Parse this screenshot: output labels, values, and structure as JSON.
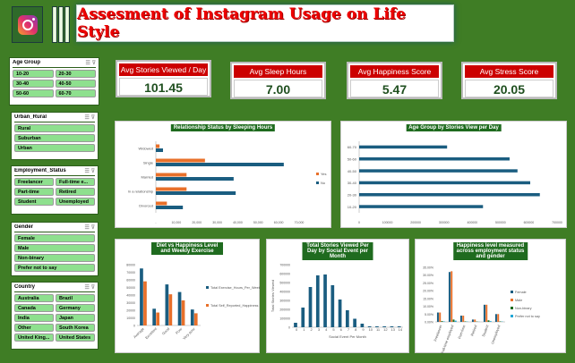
{
  "header": {
    "title": "Assesment of Instagram Usage on Life Style",
    "logo": "instagram-logo"
  },
  "slicers": [
    {
      "title": "Age Group",
      "cols": 2,
      "items": [
        "10-20",
        "20-30",
        "30-40",
        "40-50",
        "50-60",
        "60-70"
      ]
    },
    {
      "title": "Urban_Rural",
      "cols": 1,
      "items": [
        "Rural",
        "Suburban",
        "Urban"
      ]
    },
    {
      "title": "Employment_Status",
      "cols": 2,
      "items": [
        "Freelancer",
        "Full-time e...",
        "Part-time",
        "Retired",
        "Student",
        "Unemployed"
      ]
    },
    {
      "title": "Gender",
      "cols": 1,
      "items": [
        "Female",
        "Male",
        "Non-binary",
        "Prefer not to say"
      ]
    },
    {
      "title": "Country",
      "cols": 2,
      "items": [
        "Australia",
        "Brazil",
        "Canada",
        "Germany",
        "India",
        "Japan",
        "Other",
        "South Korea",
        "United King...",
        "United States"
      ]
    }
  ],
  "kpis": [
    {
      "label": "Avg Stories Viewed / Day",
      "value": "101.45"
    },
    {
      "label": "Avg Sleep Hours",
      "value": "7.00"
    },
    {
      "label": "Avg Happiness Score",
      "value": "5.47"
    },
    {
      "label": "Avg Stress Score",
      "value": "20.05"
    }
  ],
  "colors": {
    "blue": "#1a5d80",
    "orange": "#e8702a",
    "green": "#1e6b1e",
    "cyan": "#22a7d6",
    "background": "#3f7d25",
    "title_red": "#e00000"
  },
  "chart_data": [
    {
      "type": "bar",
      "orientation": "horizontal",
      "title": "Relationship Status by Sleeping Hours",
      "categories": [
        "Widowed",
        "Single",
        "Married",
        "In a relationship",
        "Divorced"
      ],
      "series": [
        {
          "name": "Yes",
          "values": [
            1800,
            24000,
            15000,
            15000,
            5400
          ]
        },
        {
          "name": "No",
          "values": [
            3500,
            62500,
            38000,
            39000,
            13200
          ]
        }
      ],
      "xlim": [
        0,
        70000
      ],
      "ticks": [
        "-",
        "10,000",
        "20,000",
        "30,000",
        "40,000",
        "50,000",
        "60,000",
        "70,000"
      ],
      "legend": "right"
    },
    {
      "type": "bar",
      "orientation": "horizontal",
      "title": "Age Group by Stories View per Day",
      "categories": [
        "60-70",
        "50-60",
        "40-50",
        "30-40",
        "20-30",
        "10-20"
      ],
      "series": [
        {
          "values": [
            311000,
            532000,
            560000,
            605000,
            639000,
            438000
          ]
        }
      ],
      "xlim": [
        0,
        700000
      ],
      "ticks": [
        "0",
        "100000",
        "200000",
        "300000",
        "400000",
        "500000",
        "600000",
        "700000"
      ]
    },
    {
      "type": "bar",
      "title": "Diet vs Happiness Level and Weekly Exercise",
      "categories": [
        "Average",
        "Excellent",
        "Good",
        "Poor",
        "Very poor"
      ],
      "series": [
        {
          "name": "Total Exercise_Hours_Per_Week",
          "values": [
            75000,
            22000,
            54000,
            44000,
            21000
          ]
        },
        {
          "name": "Total Self_Reported_Happiness",
          "values": [
            58000,
            17000,
            41000,
            33000,
            16000
          ]
        }
      ],
      "ylim": [
        0,
        80000
      ],
      "ticks": [
        "0",
        "10000",
        "20000",
        "30000",
        "40000",
        "50000",
        "60000",
        "70000",
        "80000"
      ],
      "legend": "right"
    },
    {
      "type": "bar",
      "title": "Total Stories Viewed Per Day by Social Event per Month",
      "xlabel": "Social Event Per Month",
      "ylabel": "Total Stories Viewed",
      "categories": [
        "0",
        "1",
        "2",
        "3",
        "4",
        "5",
        "6",
        "7",
        "8",
        "9",
        "10",
        "11",
        "12",
        "13",
        "14"
      ],
      "series": [
        {
          "values": [
            50000,
            220000,
            450000,
            580000,
            590000,
            470000,
            310000,
            190000,
            95000,
            40000,
            10000,
            10000,
            10000,
            10000,
            10000
          ]
        }
      ],
      "ylim": [
        0,
        700000
      ],
      "ticks": [
        "0",
        "100000",
        "200000",
        "300000",
        "400000",
        "500000",
        "600000",
        "700000"
      ]
    },
    {
      "type": "bar",
      "title": "Happiness level measured across employment status and gender",
      "categories": [
        "Freelancer",
        "Full-time employed",
        "Part-time",
        "Retired",
        "Student",
        "Unemployed"
      ],
      "series": [
        {
          "name": "Female",
          "values": [
            6,
            32,
            4,
            1.5,
            11,
            5
          ]
        },
        {
          "name": "Male",
          "values": [
            6,
            32.5,
            4,
            1.5,
            11,
            5
          ]
        },
        {
          "name": "Non-binary",
          "values": [
            0.5,
            1.5,
            0.3,
            0.2,
            1,
            0.3
          ]
        },
        {
          "name": "Prefer not to say",
          "values": [
            0.3,
            0.8,
            0.2,
            0.1,
            0.5,
            0.2
          ]
        }
      ],
      "ylim": [
        0,
        35
      ],
      "ticks": [
        "0.00%",
        "5.00%",
        "10.00%",
        "15.00%",
        "20.00%",
        "25.00%",
        "30.00%",
        "35.00%"
      ],
      "legend": "right"
    }
  ]
}
